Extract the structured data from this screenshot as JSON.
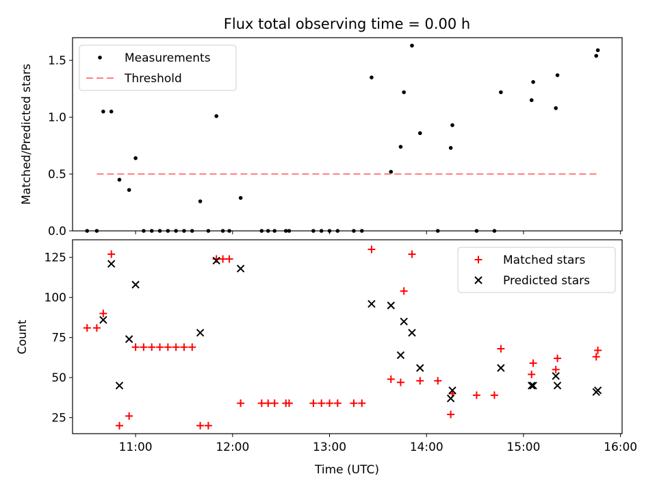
{
  "chart_data": [
    {
      "type": "scatter",
      "title": "Flux total observing time = 0.00 h",
      "xlabel": "",
      "ylabel": "Matched/Predicted stars",
      "ylim": [
        0,
        1.7
      ],
      "xlim": [
        "10:21",
        "16:01"
      ],
      "yticks": [
        "0.0",
        "0.5",
        "1.0",
        "1.5"
      ],
      "legend_placement": "top-left",
      "grid": false,
      "series": [
        {
          "name": "Measurements",
          "marker": "dot",
          "color": "#000000",
          "points": [
            [
              "10:30",
              0.0
            ],
            [
              "10:36",
              0.0
            ],
            [
              "10:40",
              1.05
            ],
            [
              "10:45",
              1.05
            ],
            [
              "10:50",
              0.45
            ],
            [
              "10:56",
              0.36
            ],
            [
              "11:00",
              0.64
            ],
            [
              "11:05",
              0.0
            ],
            [
              "11:10",
              0.0
            ],
            [
              "11:15",
              0.0
            ],
            [
              "11:20",
              0.0
            ],
            [
              "11:25",
              0.0
            ],
            [
              "11:30",
              0.0
            ],
            [
              "11:35",
              0.0
            ],
            [
              "11:40",
              0.26
            ],
            [
              "11:45",
              0.0
            ],
            [
              "11:50",
              1.01
            ],
            [
              "11:54",
              0.0
            ],
            [
              "11:58",
              0.0
            ],
            [
              "12:05",
              0.29
            ],
            [
              "12:18",
              0.0
            ],
            [
              "12:22",
              0.0
            ],
            [
              "12:26",
              0.0
            ],
            [
              "12:33",
              0.0
            ],
            [
              "12:35",
              0.0
            ],
            [
              "12:50",
              0.0
            ],
            [
              "12:55",
              0.0
            ],
            [
              "13:00",
              0.0
            ],
            [
              "13:05",
              0.0
            ],
            [
              "13:15",
              0.0
            ],
            [
              "13:20",
              0.0
            ],
            [
              "13:26",
              1.35
            ],
            [
              "13:38",
              0.52
            ],
            [
              "13:44",
              0.74
            ],
            [
              "13:46",
              1.22
            ],
            [
              "13:51",
              1.63
            ],
            [
              "13:56",
              0.86
            ],
            [
              "14:07",
              0.0
            ],
            [
              "14:15",
              0.73
            ],
            [
              "14:16",
              0.93
            ],
            [
              "14:31",
              0.0
            ],
            [
              "14:42",
              0.0
            ],
            [
              "14:46",
              1.22
            ],
            [
              "15:05",
              1.15
            ],
            [
              "15:06",
              1.31
            ],
            [
              "15:20",
              1.08
            ],
            [
              "15:21",
              1.37
            ],
            [
              "15:45",
              1.54
            ],
            [
              "15:46",
              1.59
            ]
          ]
        },
        {
          "name": "Threshold",
          "marker": "dashed-line",
          "color": "#ff8080",
          "points": [
            [
              "10:36",
              0.5
            ],
            [
              "15:46",
              0.5
            ]
          ]
        }
      ]
    },
    {
      "type": "scatter",
      "title": "",
      "xlabel": "Time (UTC)",
      "ylabel": "Count",
      "ylim": [
        15,
        136
      ],
      "xlim": [
        "10:21",
        "16:01"
      ],
      "yticks": [
        "25",
        "50",
        "75",
        "100",
        "125"
      ],
      "xticks": [
        "11:00",
        "12:00",
        "13:00",
        "14:00",
        "15:00",
        "16:00"
      ],
      "legend_placement": "top-right",
      "grid": false,
      "series": [
        {
          "name": "Matched stars",
          "marker": "plus",
          "color": "#ff0000",
          "points": [
            [
              "10:30",
              81
            ],
            [
              "10:36",
              81
            ],
            [
              "10:40",
              90
            ],
            [
              "10:45",
              127
            ],
            [
              "10:50",
              20
            ],
            [
              "10:56",
              26
            ],
            [
              "11:00",
              69
            ],
            [
              "11:05",
              69
            ],
            [
              "11:10",
              69
            ],
            [
              "11:15",
              69
            ],
            [
              "11:20",
              69
            ],
            [
              "11:25",
              69
            ],
            [
              "11:30",
              69
            ],
            [
              "11:35",
              69
            ],
            [
              "11:40",
              20
            ],
            [
              "11:45",
              20
            ],
            [
              "11:50",
              124
            ],
            [
              "11:54",
              124
            ],
            [
              "11:58",
              124
            ],
            [
              "12:05",
              34
            ],
            [
              "12:18",
              34
            ],
            [
              "12:22",
              34
            ],
            [
              "12:26",
              34
            ],
            [
              "12:33",
              34
            ],
            [
              "12:35",
              34
            ],
            [
              "12:50",
              34
            ],
            [
              "12:55",
              34
            ],
            [
              "13:00",
              34
            ],
            [
              "13:05",
              34
            ],
            [
              "13:15",
              34
            ],
            [
              "13:20",
              34
            ],
            [
              "13:26",
              130
            ],
            [
              "13:38",
              49
            ],
            [
              "13:44",
              47
            ],
            [
              "13:46",
              104
            ],
            [
              "13:51",
              127
            ],
            [
              "13:56",
              48
            ],
            [
              "14:07",
              48
            ],
            [
              "14:15",
              27
            ],
            [
              "14:16",
              40
            ],
            [
              "14:31",
              39
            ],
            [
              "14:42",
              39
            ],
            [
              "14:46",
              68
            ],
            [
              "15:05",
              52
            ],
            [
              "15:06",
              59
            ],
            [
              "15:20",
              55
            ],
            [
              "15:21",
              62
            ],
            [
              "15:45",
              63
            ],
            [
              "15:46",
              67
            ]
          ]
        },
        {
          "name": "Predicted stars",
          "marker": "x",
          "color": "#000000",
          "points": [
            [
              "10:40",
              86
            ],
            [
              "10:45",
              121
            ],
            [
              "10:50",
              45
            ],
            [
              "10:56",
              74
            ],
            [
              "11:00",
              108
            ],
            [
              "11:40",
              78
            ],
            [
              "11:50",
              123
            ],
            [
              "12:05",
              118
            ],
            [
              "13:26",
              96
            ],
            [
              "13:38",
              95
            ],
            [
              "13:44",
              64
            ],
            [
              "13:46",
              85
            ],
            [
              "13:51",
              78
            ],
            [
              "13:56",
              56
            ],
            [
              "14:15",
              37
            ],
            [
              "14:16",
              42
            ],
            [
              "14:46",
              56
            ],
            [
              "15:05",
              45
            ],
            [
              "15:06",
              45
            ],
            [
              "15:20",
              51
            ],
            [
              "15:21",
              45
            ],
            [
              "15:45",
              41
            ],
            [
              "15:46",
              42
            ]
          ]
        }
      ]
    }
  ]
}
